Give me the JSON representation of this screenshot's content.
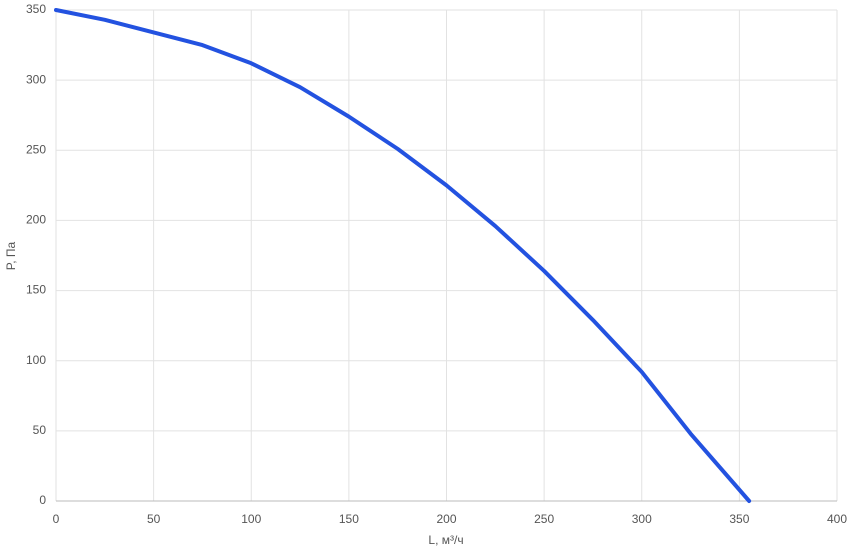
{
  "chart_data": {
    "type": "line",
    "xlabel": "L, м³/ч",
    "ylabel": "P, Па",
    "x": [
      0,
      25,
      50,
      75,
      100,
      125,
      150,
      175,
      200,
      225,
      250,
      275,
      300,
      325,
      355
    ],
    "series": [
      {
        "name": "P",
        "color": "#2352e0",
        "values": [
          350,
          343,
          334,
          325,
          312,
          295,
          274,
          251,
          225,
          196,
          164,
          129,
          92,
          48,
          0
        ]
      }
    ],
    "xlim": [
      0,
      400
    ],
    "xticks": [
      0,
      50,
      100,
      150,
      200,
      250,
      300,
      350,
      400
    ],
    "ylim": [
      0,
      350
    ],
    "yticks": [
      0,
      50,
      100,
      150,
      200,
      250,
      300,
      350
    ],
    "grid": true
  }
}
